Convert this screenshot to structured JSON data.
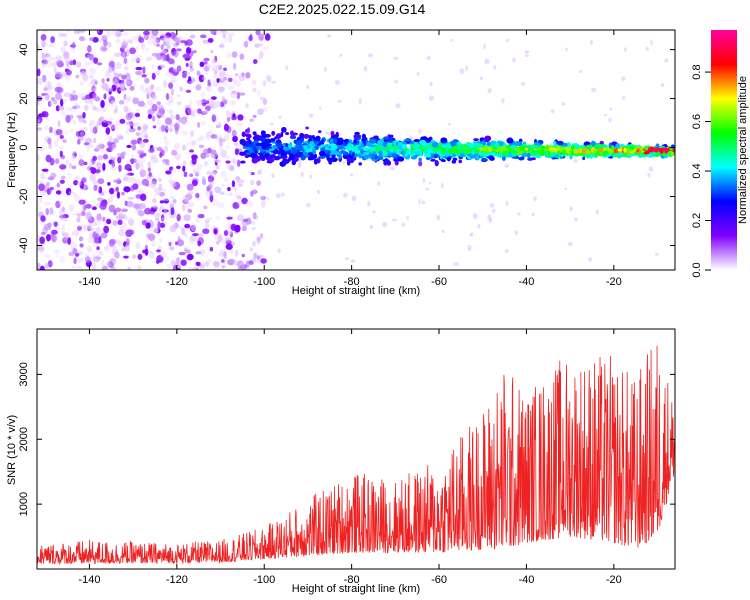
{
  "title": "C2E2.2025.022.15.09.G14",
  "chart_data": [
    {
      "type": "heatmap",
      "xlabel": "Height of straight line (km)",
      "ylabel": "Frequency (Hz)",
      "xlim": [
        -152,
        -6
      ],
      "ylim": [
        -50,
        48
      ],
      "x_ticks": [
        -140,
        -120,
        -100,
        -80,
        -60,
        -40,
        -20
      ],
      "y_ticks": [
        -40,
        -20,
        0,
        20,
        40
      ],
      "colorbar": {
        "label": "Normalized spectral amplitude",
        "range": [
          0,
          0.97
        ],
        "ticks": [
          0.0,
          0.2,
          0.4,
          0.6,
          0.8
        ],
        "tick_labels": [
          "0.0",
          "0.2",
          "0.4",
          "0.6",
          "0.8"
        ],
        "colors": [
          "#ffffff",
          "#8000ff",
          "#0000ff",
          "#00ffff",
          "#00ff00",
          "#ffff00",
          "#ff0000",
          "#ff00a0"
        ]
      },
      "description_regions": [
        {
          "x_range": [
            -152,
            -105
          ],
          "freq_range": [
            -50,
            48
          ],
          "amplitude": "low (0.02-0.15), scattered noise"
        },
        {
          "x_range": [
            -105,
            -6
          ],
          "freq_center": 0,
          "freq_halfwidth_start": 8,
          "freq_halfwidth_end": 2,
          "amplitude": "0.1-0.97 increasing toward -10 km"
        }
      ]
    },
    {
      "type": "line",
      "xlabel": "Height of straight line (km)",
      "ylabel": "SNR (10 * v/v)",
      "xlim": [
        -152,
        -6
      ],
      "ylim": [
        0,
        3700
      ],
      "x_ticks": [
        -140,
        -120,
        -100,
        -80,
        -60,
        -40,
        -20
      ],
      "y_ticks": [
        1000,
        2000,
        3000
      ],
      "color": "#ee2222",
      "envelope": [
        {
          "x": -150,
          "min": 80,
          "max": 400
        },
        {
          "x": -140,
          "min": 80,
          "max": 450
        },
        {
          "x": -130,
          "min": 90,
          "max": 420
        },
        {
          "x": -120,
          "min": 90,
          "max": 400
        },
        {
          "x": -110,
          "min": 100,
          "max": 450
        },
        {
          "x": -100,
          "min": 150,
          "max": 650
        },
        {
          "x": -90,
          "min": 200,
          "max": 1100
        },
        {
          "x": -80,
          "min": 250,
          "max": 1500
        },
        {
          "x": -70,
          "min": 250,
          "max": 1400
        },
        {
          "x": -60,
          "min": 250,
          "max": 1700
        },
        {
          "x": -50,
          "min": 300,
          "max": 2500
        },
        {
          "x": -45,
          "min": 300,
          "max": 3200
        },
        {
          "x": -40,
          "min": 400,
          "max": 2800
        },
        {
          "x": -30,
          "min": 500,
          "max": 3400
        },
        {
          "x": -20,
          "min": 400,
          "max": 3300
        },
        {
          "x": -15,
          "min": 300,
          "max": 3000
        },
        {
          "x": -10,
          "min": 500,
          "max": 3700
        },
        {
          "x": -6,
          "min": 1500,
          "max": 2600
        }
      ]
    }
  ]
}
